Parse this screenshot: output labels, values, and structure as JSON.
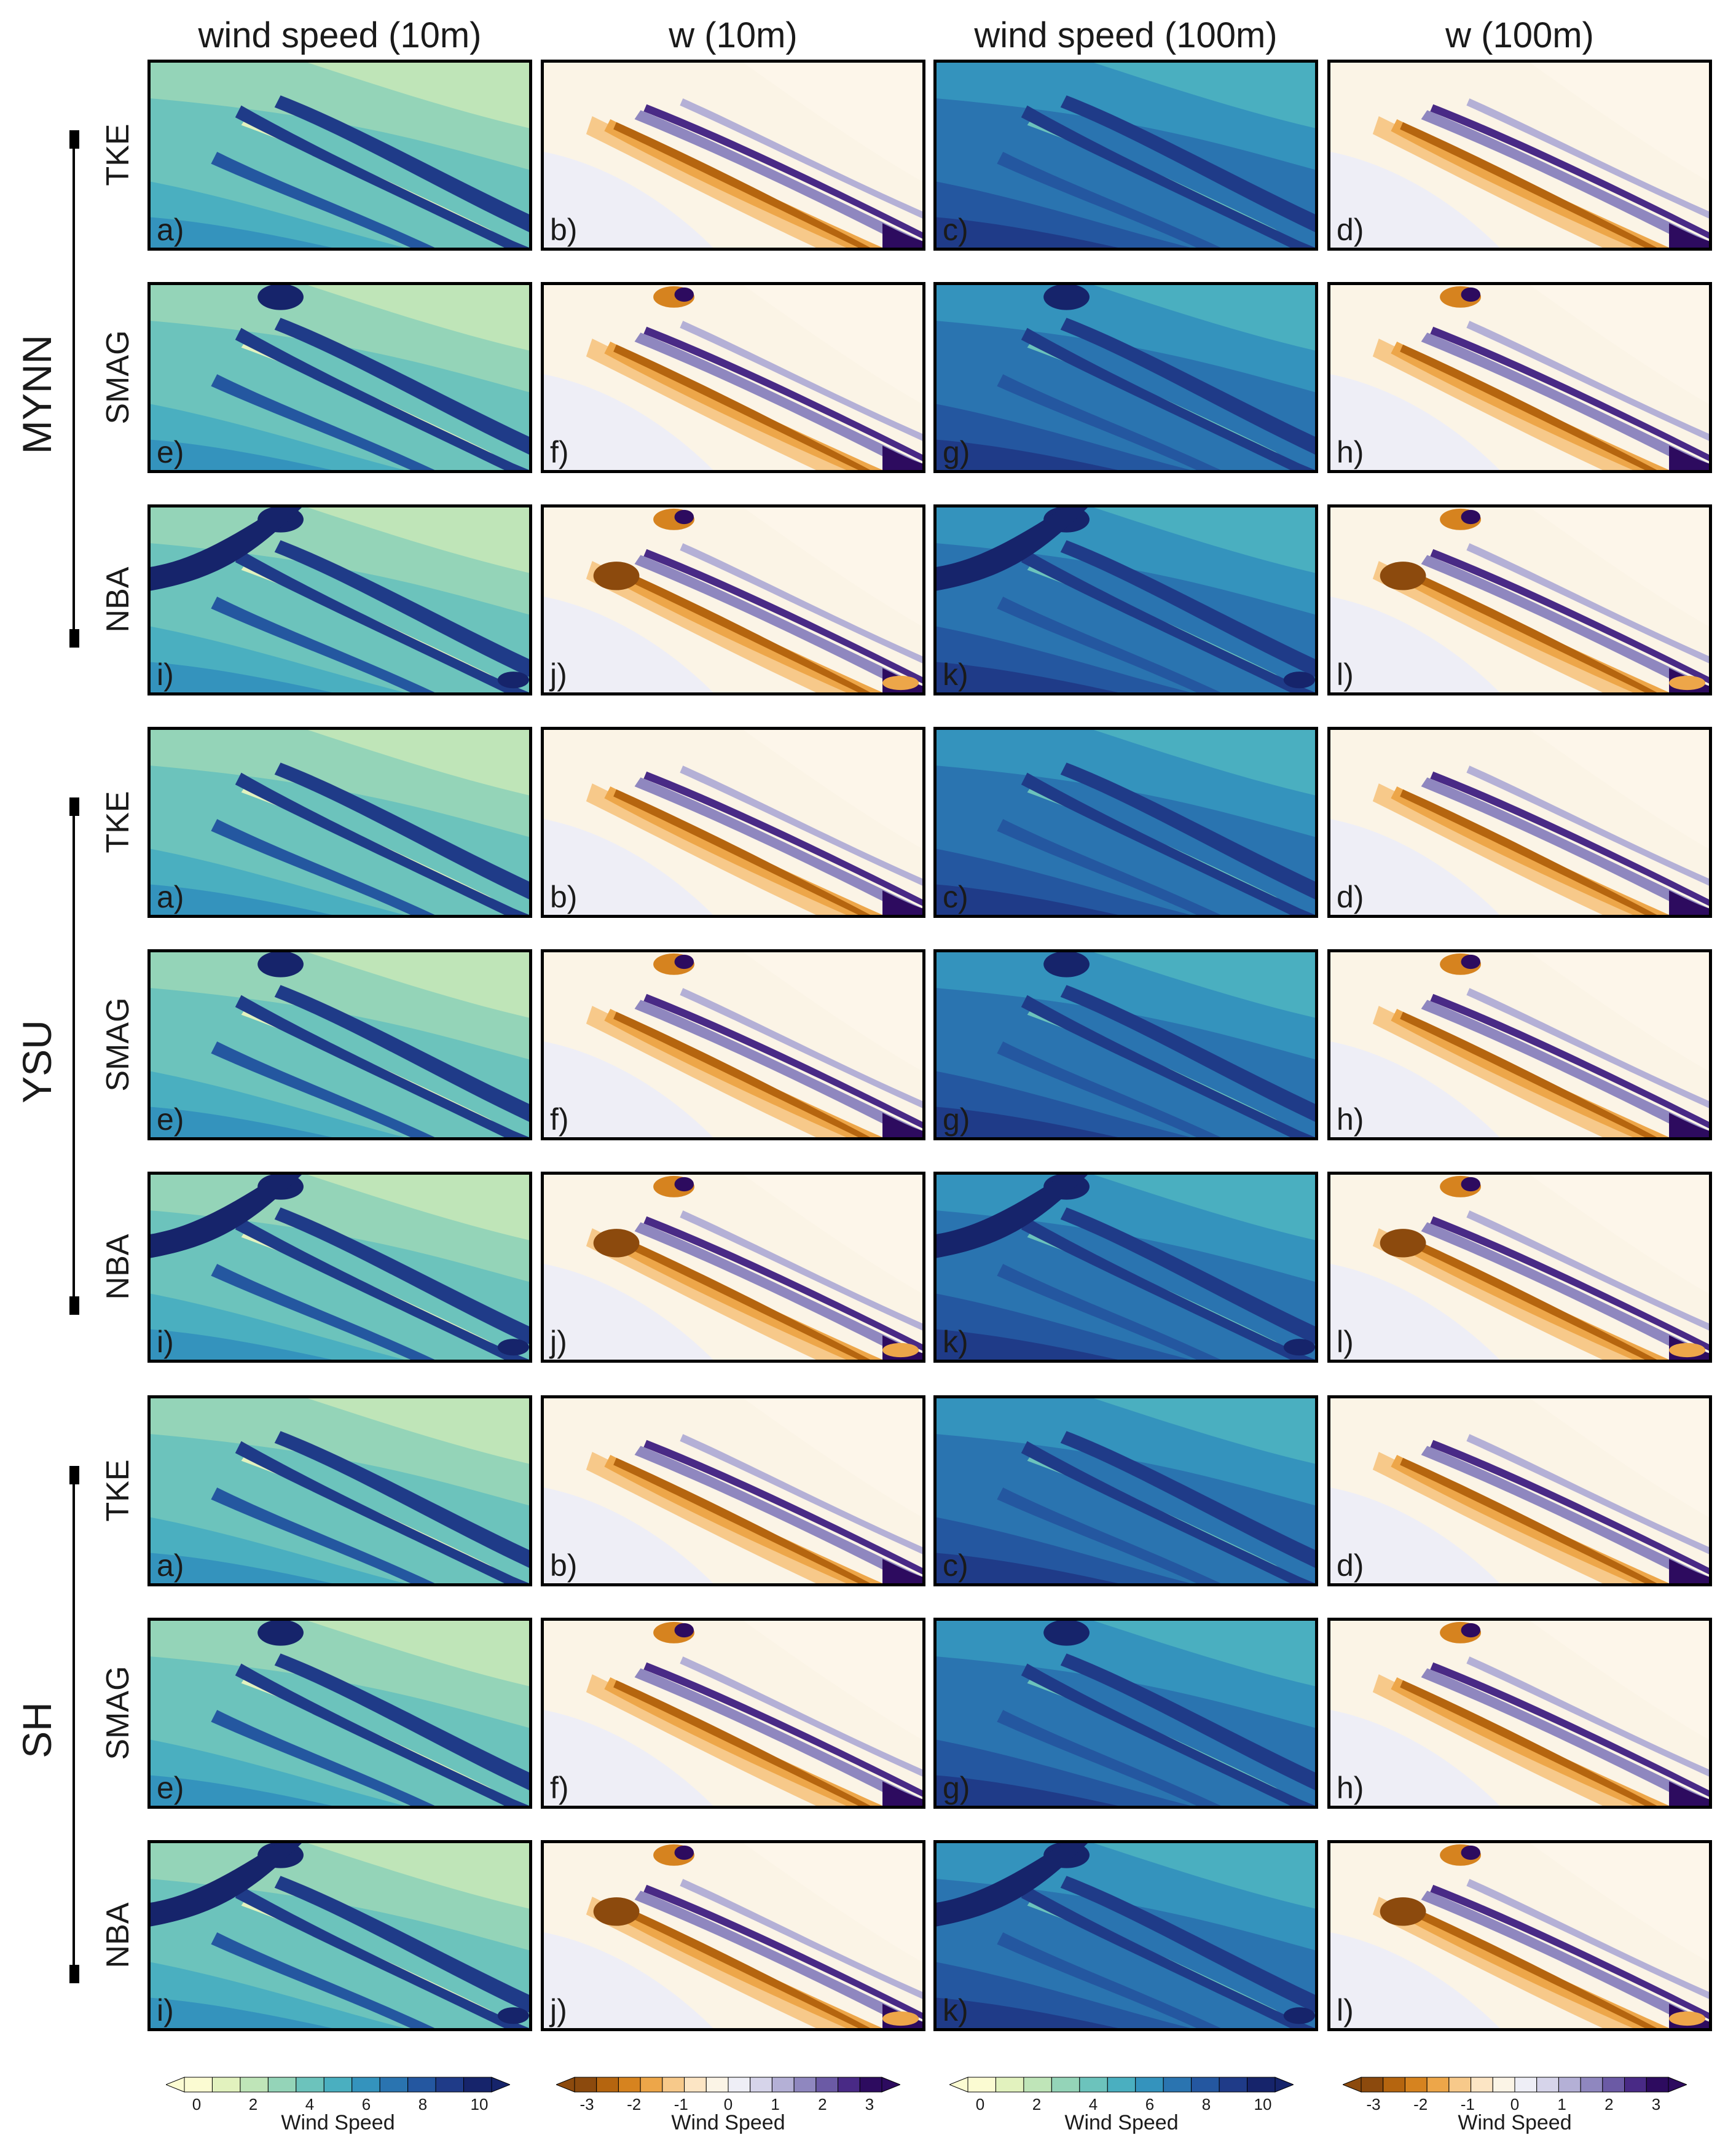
{
  "columns": [
    "wind speed (10m)",
    "w (10m)",
    "wind speed (100m)",
    "w (100m)"
  ],
  "groups": [
    {
      "name": "MYNN",
      "rows": [
        {
          "scheme": "TKE",
          "labels": [
            "a)",
            "b)",
            "c)",
            "d)"
          ]
        },
        {
          "scheme": "SMAG",
          "labels": [
            "e)",
            "f)",
            "g)",
            "h)"
          ]
        },
        {
          "scheme": "NBA",
          "labels": [
            "i)",
            "j)",
            "k)",
            "l)"
          ]
        }
      ]
    },
    {
      "name": "YSU",
      "rows": [
        {
          "scheme": "TKE",
          "labels": [
            "a)",
            "b)",
            "c)",
            "d)"
          ]
        },
        {
          "scheme": "SMAG",
          "labels": [
            "e)",
            "f)",
            "g)",
            "h)"
          ]
        },
        {
          "scheme": "NBA",
          "labels": [
            "i)",
            "j)",
            "k)",
            "l)"
          ]
        }
      ]
    },
    {
      "name": "SH",
      "rows": [
        {
          "scheme": "TKE",
          "labels": [
            "a)",
            "b)",
            "c)",
            "d)"
          ]
        },
        {
          "scheme": "SMAG",
          "labels": [
            "e)",
            "f)",
            "g)",
            "h)"
          ]
        },
        {
          "scheme": "NBA",
          "labels": [
            "i)",
            "j)",
            "k)",
            "l)"
          ]
        }
      ]
    }
  ],
  "colorbars": [
    {
      "title": "Wind Speed",
      "ticks": [
        "0",
        "2",
        "4",
        "6",
        "8",
        "10"
      ],
      "palette": "speed"
    },
    {
      "title": "Wind Speed",
      "ticks": [
        "-3",
        "-2",
        "-1",
        "0",
        "1",
        "2",
        "3"
      ],
      "palette": "diverging"
    },
    {
      "title": "Wind Speed",
      "ticks": [
        "0",
        "2",
        "4",
        "6",
        "8",
        "10"
      ],
      "palette": "speed"
    },
    {
      "title": "Wind Speed",
      "ticks": [
        "-3",
        "-2",
        "-1",
        "0",
        "1",
        "2",
        "3"
      ],
      "palette": "diverging"
    }
  ],
  "colors": {
    "speed": [
      "#fbfbd2",
      "#e2f2be",
      "#bfe5b8",
      "#94d4b8",
      "#6cc3bc",
      "#4aafc0",
      "#3493bd",
      "#2a74b0",
      "#2457a0",
      "#1f3b88",
      "#16246b"
    ],
    "diverging": [
      "#8c4a0d",
      "#b5650f",
      "#d6831f",
      "#eda649",
      "#f7c98a",
      "#fce5c4",
      "#fbf4e6",
      "#eeeef6",
      "#d6d4ea",
      "#b4b0d6",
      "#8f87bf",
      "#6b5aa5",
      "#492a86",
      "#2d0b5f"
    ]
  }
}
